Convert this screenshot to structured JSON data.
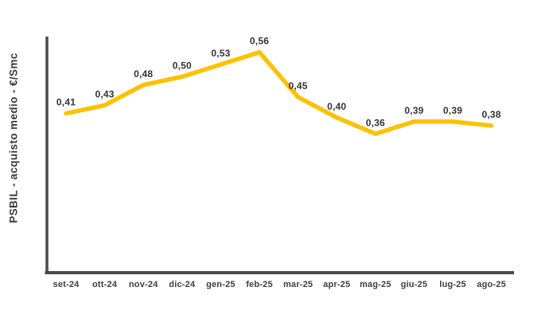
{
  "chart_data": {
    "type": "line",
    "title": "",
    "xlabel": "",
    "ylabel": "PSBIL - acquisto medio - €/Smc",
    "categories": [
      "set-24",
      "ott-24",
      "nov-24",
      "dic-24",
      "gen-25",
      "feb-25",
      "mar-25",
      "apr-25",
      "mag-25",
      "giu-25",
      "lug-25",
      "ago-25"
    ],
    "values": [
      0.41,
      0.43,
      0.48,
      0.5,
      0.53,
      0.56,
      0.45,
      0.4,
      0.36,
      0.39,
      0.39,
      0.38
    ],
    "value_labels": [
      "0,41",
      "0,43",
      "0,48",
      "0,50",
      "0,53",
      "0,56",
      "0,45",
      "0,40",
      "0,36",
      "0,39",
      "0,39",
      "0,38"
    ],
    "ylim": [
      0,
      0.6
    ],
    "grid": false,
    "legend": null,
    "colors": {
      "line": "#FCC200",
      "axis": "#4A4A4A",
      "value_text": "#333333",
      "tick_text": "#3D3D3D",
      "background": "#FFFFFF"
    }
  }
}
